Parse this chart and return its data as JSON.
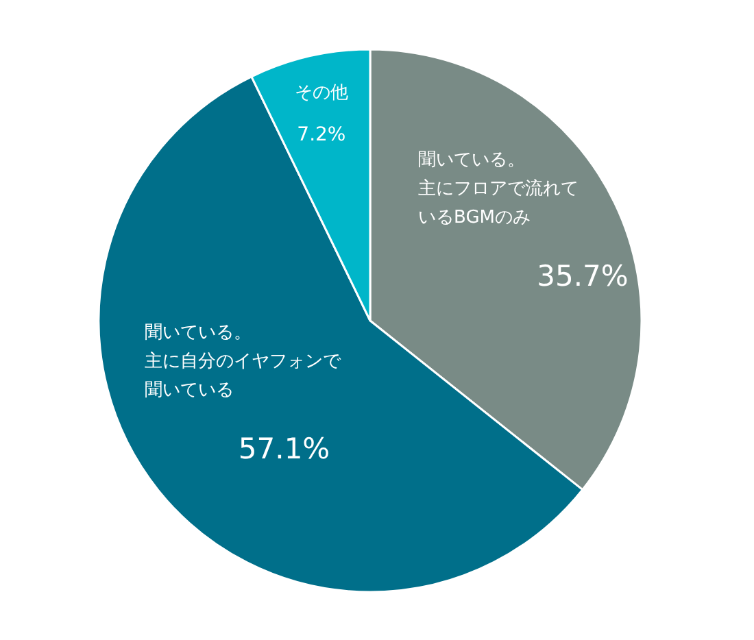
{
  "chart_data": {
    "type": "pie",
    "categories": [
      "聞いている。主にフロアで流れているBGMのみ",
      "聞いている。主に自分のイヤフォンで聞いている",
      "その他"
    ],
    "values": [
      35.7,
      57.1,
      7.2
    ],
    "value_labels": [
      "35.7%",
      "57.1%",
      "7.2%"
    ],
    "colors": [
      "#798b86",
      "#006f8a",
      "#00b6c9"
    ]
  }
}
